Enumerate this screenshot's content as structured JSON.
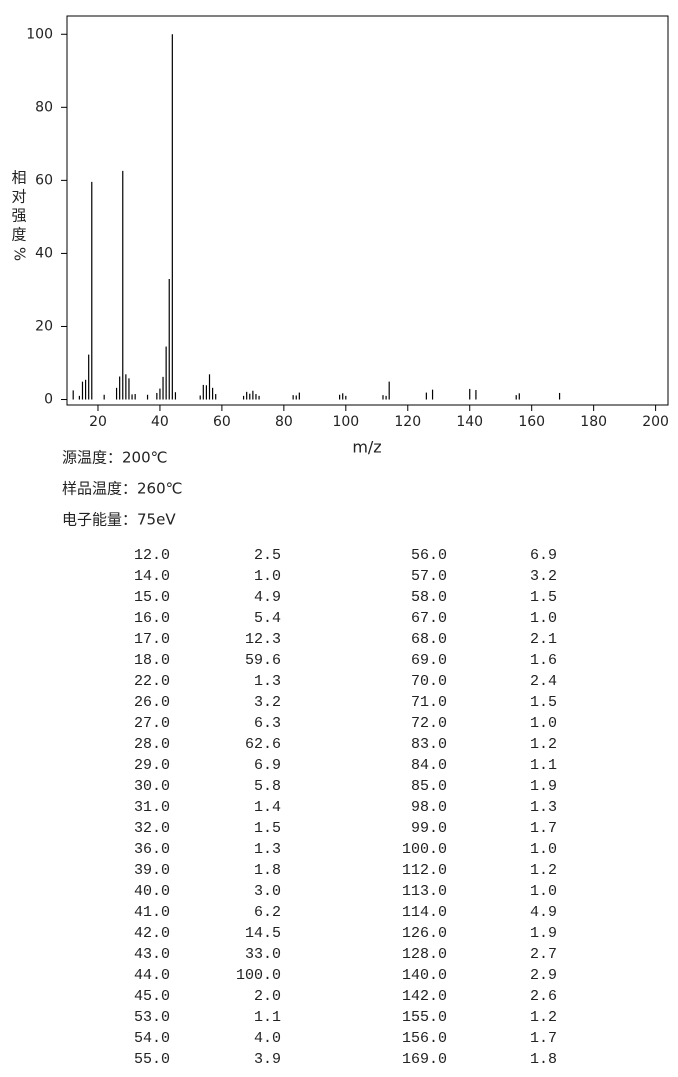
{
  "chart_data": {
    "type": "bar",
    "x_label": "m/z",
    "y_label": [
      "相",
      "对",
      "强",
      "度",
      "%"
    ],
    "x": [
      12,
      14,
      15,
      16,
      17,
      18,
      22,
      26,
      27,
      28,
      29,
      30,
      31,
      32,
      36,
      39,
      40,
      41,
      42,
      43,
      44,
      45,
      53,
      54,
      55,
      56,
      57,
      58,
      67,
      68,
      69,
      70,
      71,
      72,
      83,
      84,
      85,
      98,
      99,
      100,
      112,
      113,
      114,
      126,
      128,
      140,
      142,
      155,
      156,
      169
    ],
    "values": [
      2.5,
      1.0,
      4.9,
      5.4,
      12.3,
      59.6,
      1.3,
      3.2,
      6.3,
      62.6,
      6.9,
      5.8,
      1.4,
      1.5,
      1.3,
      1.8,
      3.0,
      6.2,
      14.5,
      33.0,
      100.0,
      2.0,
      1.1,
      4.0,
      3.9,
      6.9,
      3.2,
      1.5,
      1.0,
      2.1,
      1.6,
      2.4,
      1.5,
      1.0,
      1.2,
      1.1,
      1.9,
      1.3,
      1.7,
      1.0,
      1.2,
      1.0,
      4.9,
      1.9,
      2.7,
      2.9,
      2.6,
      1.2,
      1.7,
      1.8
    ],
    "color": "#000000",
    "xlim": [
      10,
      204
    ],
    "xticks": [
      20,
      40,
      60,
      80,
      100,
      120,
      140,
      160,
      180,
      200
    ],
    "ylim": [
      -1.5,
      105
    ],
    "yticks": [
      0,
      20,
      40,
      60,
      80,
      100
    ]
  },
  "info": [
    "源温度：200℃",
    "样品温度：260℃",
    "电子能量：75eV"
  ],
  "table": {
    "rows": [
      [
        "12.0",
        "2.5",
        "56.0",
        "6.9"
      ],
      [
        "14.0",
        "1.0",
        "57.0",
        "3.2"
      ],
      [
        "15.0",
        "4.9",
        "58.0",
        "1.5"
      ],
      [
        "16.0",
        "5.4",
        "67.0",
        "1.0"
      ],
      [
        "17.0",
        "12.3",
        "68.0",
        "2.1"
      ],
      [
        "18.0",
        "59.6",
        "69.0",
        "1.6"
      ],
      [
        "22.0",
        "1.3",
        "70.0",
        "2.4"
      ],
      [
        "26.0",
        "3.2",
        "71.0",
        "1.5"
      ],
      [
        "27.0",
        "6.3",
        "72.0",
        "1.0"
      ],
      [
        "28.0",
        "62.6",
        "83.0",
        "1.2"
      ],
      [
        "29.0",
        "6.9",
        "84.0",
        "1.1"
      ],
      [
        "30.0",
        "5.8",
        "85.0",
        "1.9"
      ],
      [
        "31.0",
        "1.4",
        "98.0",
        "1.3"
      ],
      [
        "32.0",
        "1.5",
        "99.0",
        "1.7"
      ],
      [
        "36.0",
        "1.3",
        "100.0",
        "1.0"
      ],
      [
        "39.0",
        "1.8",
        "112.0",
        "1.2"
      ],
      [
        "40.0",
        "3.0",
        "113.0",
        "1.0"
      ],
      [
        "41.0",
        "6.2",
        "114.0",
        "4.9"
      ],
      [
        "42.0",
        "14.5",
        "126.0",
        "1.9"
      ],
      [
        "43.0",
        "33.0",
        "128.0",
        "2.7"
      ],
      [
        "44.0",
        "100.0",
        "140.0",
        "2.9"
      ],
      [
        "45.0",
        "2.0",
        "142.0",
        "2.6"
      ],
      [
        "53.0",
        "1.1",
        "155.0",
        "1.2"
      ],
      [
        "54.0",
        "4.0",
        "156.0",
        "1.7"
      ],
      [
        "55.0",
        "3.9",
        "169.0",
        "1.8"
      ]
    ]
  }
}
